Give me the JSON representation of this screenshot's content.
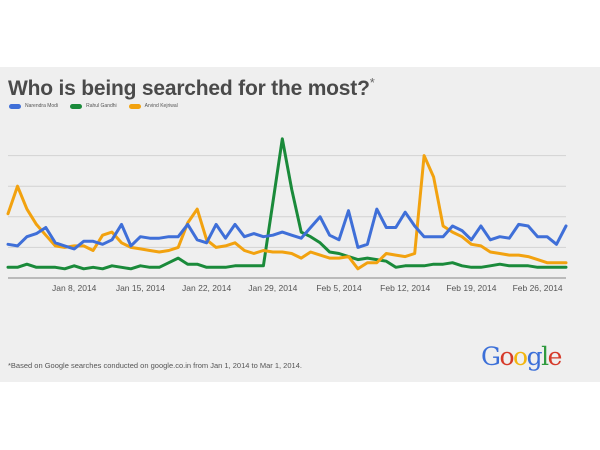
{
  "title": "Who is being searched for the most?",
  "title_mark": "*",
  "footnote": "*Based on Google searches conducted on google.co.in from Jan 1, 2014 to Mar 1, 2014.",
  "logo": {
    "text": "Google",
    "letters": [
      {
        "ch": "G",
        "color": "blue"
      },
      {
        "ch": "o",
        "color": "red"
      },
      {
        "ch": "o",
        "color": "yellow"
      },
      {
        "ch": "g",
        "color": "blue"
      },
      {
        "ch": "l",
        "color": "green"
      },
      {
        "ch": "e",
        "color": "red"
      }
    ]
  },
  "chart_data": {
    "type": "line",
    "title": "Who is being searched for the most?",
    "legend_position": "top-left",
    "grid": true,
    "x_domain": [
      "2014-01-01",
      "2014-03-01"
    ],
    "ylim": [
      0,
      100
    ],
    "x_ticks": [
      {
        "date": "2014-01-08",
        "label": "Jan 8, 2014"
      },
      {
        "date": "2014-01-15",
        "label": "Jan 15, 2014"
      },
      {
        "date": "2014-01-22",
        "label": "Jan 22, 2014"
      },
      {
        "date": "2014-01-29",
        "label": "Jan 29, 2014"
      },
      {
        "date": "2014-02-05",
        "label": "Feb 5, 2014"
      },
      {
        "date": "2014-02-12",
        "label": "Feb 12, 2014"
      },
      {
        "date": "2014-02-19",
        "label": "Feb 19, 2014"
      },
      {
        "date": "2014-02-26",
        "label": "Feb 26, 2014"
      }
    ],
    "series": [
      {
        "name": "Narendra Modi",
        "color": "#3f6fd8",
        "points": [
          [
            "2014-01-01",
            22
          ],
          [
            "2014-01-02",
            21
          ],
          [
            "2014-01-03",
            27
          ],
          [
            "2014-01-04",
            29
          ],
          [
            "2014-01-05",
            33
          ],
          [
            "2014-01-06",
            23
          ],
          [
            "2014-01-07",
            21
          ],
          [
            "2014-01-08",
            19
          ],
          [
            "2014-01-09",
            24
          ],
          [
            "2014-01-10",
            24
          ],
          [
            "2014-01-11",
            22
          ],
          [
            "2014-01-12",
            25
          ],
          [
            "2014-01-13",
            35
          ],
          [
            "2014-01-14",
            21
          ],
          [
            "2014-01-15",
            27
          ],
          [
            "2014-01-16",
            26
          ],
          [
            "2014-01-17",
            26
          ],
          [
            "2014-01-18",
            27
          ],
          [
            "2014-01-19",
            27
          ],
          [
            "2014-01-20",
            35
          ],
          [
            "2014-01-21",
            25
          ],
          [
            "2014-01-22",
            23
          ],
          [
            "2014-01-23",
            35
          ],
          [
            "2014-01-24",
            26
          ],
          [
            "2014-01-25",
            35
          ],
          [
            "2014-01-26",
            27
          ],
          [
            "2014-01-27",
            29
          ],
          [
            "2014-01-28",
            27
          ],
          [
            "2014-01-29",
            28
          ],
          [
            "2014-01-30",
            30
          ],
          [
            "2014-01-31",
            28
          ],
          [
            "2014-02-01",
            26
          ],
          [
            "2014-02-02",
            33
          ],
          [
            "2014-02-03",
            40
          ],
          [
            "2014-02-04",
            28
          ],
          [
            "2014-02-05",
            25
          ],
          [
            "2014-02-06",
            44
          ],
          [
            "2014-02-07",
            20
          ],
          [
            "2014-02-08",
            22
          ],
          [
            "2014-02-09",
            45
          ],
          [
            "2014-02-10",
            33
          ],
          [
            "2014-02-11",
            33
          ],
          [
            "2014-02-12",
            43
          ],
          [
            "2014-02-13",
            34
          ],
          [
            "2014-02-14",
            27
          ],
          [
            "2014-02-15",
            27
          ],
          [
            "2014-02-16",
            27
          ],
          [
            "2014-02-17",
            34
          ],
          [
            "2014-02-18",
            31
          ],
          [
            "2014-02-19",
            25
          ],
          [
            "2014-02-20",
            34
          ],
          [
            "2014-02-21",
            25
          ],
          [
            "2014-02-22",
            27
          ],
          [
            "2014-02-23",
            26
          ],
          [
            "2014-02-24",
            35
          ],
          [
            "2014-02-25",
            34
          ],
          [
            "2014-02-26",
            27
          ],
          [
            "2014-02-27",
            27
          ],
          [
            "2014-02-28",
            22
          ],
          [
            "2014-03-01",
            34
          ]
        ]
      },
      {
        "name": "Rahul Gandhi",
        "color": "#1a8a3a",
        "points": [
          [
            "2014-01-01",
            7
          ],
          [
            "2014-01-02",
            7
          ],
          [
            "2014-01-03",
            9
          ],
          [
            "2014-01-04",
            7
          ],
          [
            "2014-01-05",
            7
          ],
          [
            "2014-01-06",
            7
          ],
          [
            "2014-01-07",
            6
          ],
          [
            "2014-01-08",
            8
          ],
          [
            "2014-01-09",
            6
          ],
          [
            "2014-01-10",
            7
          ],
          [
            "2014-01-11",
            6
          ],
          [
            "2014-01-12",
            8
          ],
          [
            "2014-01-13",
            7
          ],
          [
            "2014-01-14",
            6
          ],
          [
            "2014-01-15",
            8
          ],
          [
            "2014-01-16",
            7
          ],
          [
            "2014-01-17",
            7
          ],
          [
            "2014-01-18",
            10
          ],
          [
            "2014-01-19",
            13
          ],
          [
            "2014-01-20",
            9
          ],
          [
            "2014-01-21",
            9
          ],
          [
            "2014-01-22",
            7
          ],
          [
            "2014-01-23",
            7
          ],
          [
            "2014-01-24",
            7
          ],
          [
            "2014-01-25",
            8
          ],
          [
            "2014-01-26",
            8
          ],
          [
            "2014-01-27",
            8
          ],
          [
            "2014-01-28",
            8
          ],
          [
            "2014-01-29",
            49
          ],
          [
            "2014-01-30",
            91
          ],
          [
            "2014-01-31",
            58
          ],
          [
            "2014-02-01",
            30
          ],
          [
            "2014-02-02",
            27
          ],
          [
            "2014-02-03",
            23
          ],
          [
            "2014-02-04",
            17
          ],
          [
            "2014-02-05",
            16
          ],
          [
            "2014-02-06",
            14
          ],
          [
            "2014-02-07",
            12
          ],
          [
            "2014-02-08",
            13
          ],
          [
            "2014-02-09",
            12
          ],
          [
            "2014-02-10",
            11
          ],
          [
            "2014-02-11",
            7
          ],
          [
            "2014-02-12",
            8
          ],
          [
            "2014-02-13",
            8
          ],
          [
            "2014-02-14",
            8
          ],
          [
            "2014-02-15",
            9
          ],
          [
            "2014-02-16",
            9
          ],
          [
            "2014-02-17",
            10
          ],
          [
            "2014-02-18",
            8
          ],
          [
            "2014-02-19",
            7
          ],
          [
            "2014-02-20",
            7
          ],
          [
            "2014-02-21",
            8
          ],
          [
            "2014-02-22",
            9
          ],
          [
            "2014-02-23",
            8
          ],
          [
            "2014-02-24",
            8
          ],
          [
            "2014-02-25",
            8
          ],
          [
            "2014-02-26",
            7
          ],
          [
            "2014-02-27",
            7
          ],
          [
            "2014-02-28",
            7
          ],
          [
            "2014-03-01",
            7
          ]
        ]
      },
      {
        "name": "Arvind Kejriwal",
        "color": "#f2a20f",
        "points": [
          [
            "2014-01-01",
            42
          ],
          [
            "2014-01-02",
            60
          ],
          [
            "2014-01-03",
            45
          ],
          [
            "2014-01-04",
            35
          ],
          [
            "2014-01-05",
            28
          ],
          [
            "2014-01-06",
            21
          ],
          [
            "2014-01-07",
            20
          ],
          [
            "2014-01-08",
            21
          ],
          [
            "2014-01-09",
            21
          ],
          [
            "2014-01-10",
            18
          ],
          [
            "2014-01-11",
            28
          ],
          [
            "2014-01-12",
            30
          ],
          [
            "2014-01-13",
            23
          ],
          [
            "2014-01-14",
            20
          ],
          [
            "2014-01-15",
            19
          ],
          [
            "2014-01-16",
            18
          ],
          [
            "2014-01-17",
            17
          ],
          [
            "2014-01-18",
            18
          ],
          [
            "2014-01-19",
            20
          ],
          [
            "2014-01-20",
            36
          ],
          [
            "2014-01-21",
            45
          ],
          [
            "2014-01-22",
            25
          ],
          [
            "2014-01-23",
            20
          ],
          [
            "2014-01-24",
            21
          ],
          [
            "2014-01-25",
            23
          ],
          [
            "2014-01-26",
            18
          ],
          [
            "2014-01-27",
            16
          ],
          [
            "2014-01-28",
            18
          ],
          [
            "2014-01-29",
            17
          ],
          [
            "2014-01-30",
            17
          ],
          [
            "2014-01-31",
            16
          ],
          [
            "2014-02-01",
            13
          ],
          [
            "2014-02-02",
            17
          ],
          [
            "2014-02-03",
            15
          ],
          [
            "2014-02-04",
            13
          ],
          [
            "2014-02-05",
            13
          ],
          [
            "2014-02-06",
            14
          ],
          [
            "2014-02-07",
            6
          ],
          [
            "2014-02-08",
            10
          ],
          [
            "2014-02-09",
            10
          ],
          [
            "2014-02-10",
            16
          ],
          [
            "2014-02-11",
            15
          ],
          [
            "2014-02-12",
            14
          ],
          [
            "2014-02-13",
            16
          ],
          [
            "2014-02-14",
            80
          ],
          [
            "2014-02-15",
            66
          ],
          [
            "2014-02-16",
            34
          ],
          [
            "2014-02-17",
            30
          ],
          [
            "2014-02-18",
            27
          ],
          [
            "2014-02-19",
            22
          ],
          [
            "2014-02-20",
            21
          ],
          [
            "2014-02-21",
            17
          ],
          [
            "2014-02-22",
            16
          ],
          [
            "2014-02-23",
            15
          ],
          [
            "2014-02-24",
            15
          ],
          [
            "2014-02-25",
            14
          ],
          [
            "2014-02-26",
            12
          ],
          [
            "2014-02-27",
            10
          ],
          [
            "2014-02-28",
            10
          ],
          [
            "2014-03-01",
            10
          ]
        ]
      }
    ]
  }
}
